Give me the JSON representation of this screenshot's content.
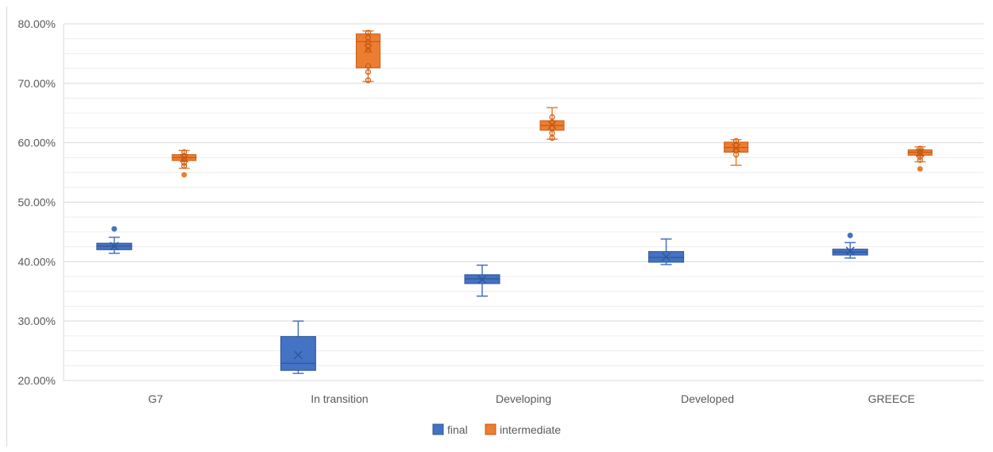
{
  "chart_data": {
    "type": "box",
    "title": "",
    "xlabel": "",
    "ylabel": "",
    "ylim": [
      0.2,
      0.8
    ],
    "y_ticks": [
      "20.00%",
      "30.00%",
      "40.00%",
      "50.00%",
      "60.00%",
      "70.00%",
      "80.00%"
    ],
    "y_tick_values": [
      0.2,
      0.3,
      0.4,
      0.5,
      0.6,
      0.7,
      0.8
    ],
    "categories": [
      "G7",
      "In transition",
      "Developing",
      "Developed",
      "GREECE"
    ],
    "grid": "major and minor horizontal",
    "legend_position": "bottom",
    "series": [
      {
        "name": "final",
        "color": "#4472c4",
        "boxes": [
          {
            "min": 0.414,
            "q1": 0.42,
            "median": 0.426,
            "q3": 0.431,
            "max": 0.441,
            "mean": 0.426,
            "outliers": [
              0.455
            ],
            "points": []
          },
          {
            "min": 0.212,
            "q1": 0.217,
            "median": 0.229,
            "q3": 0.274,
            "max": 0.3,
            "mean": 0.243,
            "outliers": [],
            "points": []
          },
          {
            "min": 0.342,
            "q1": 0.363,
            "median": 0.371,
            "q3": 0.378,
            "max": 0.394,
            "mean": 0.37,
            "outliers": [],
            "points": []
          },
          {
            "min": 0.395,
            "q1": 0.399,
            "median": 0.407,
            "q3": 0.417,
            "max": 0.438,
            "mean": 0.408,
            "outliers": [],
            "points": []
          },
          {
            "min": 0.406,
            "q1": 0.411,
            "median": 0.416,
            "q3": 0.421,
            "max": 0.432,
            "mean": 0.418,
            "outliers": [
              0.444
            ],
            "points": []
          }
        ]
      },
      {
        "name": "intermediate",
        "color": "#ed7d31",
        "boxes": [
          {
            "min": 0.557,
            "q1": 0.57,
            "median": 0.575,
            "q3": 0.58,
            "max": 0.587,
            "mean": 0.574,
            "outliers": [
              0.546
            ],
            "points": [
              0.561,
              0.566,
              0.572,
              0.578,
              0.584
            ]
          },
          {
            "min": 0.703,
            "q1": 0.726,
            "median": 0.77,
            "q3": 0.783,
            "max": 0.788,
            "mean": 0.758,
            "outliers": [],
            "points": [
              0.705,
              0.719,
              0.729,
              0.756,
              0.763,
              0.769,
              0.777,
              0.785
            ]
          },
          {
            "min": 0.606,
            "q1": 0.621,
            "median": 0.629,
            "q3": 0.637,
            "max": 0.659,
            "mean": 0.63,
            "outliers": [],
            "points": [
              0.608,
              0.616,
              0.625,
              0.634,
              0.643
            ]
          },
          {
            "min": 0.562,
            "q1": 0.584,
            "median": 0.592,
            "q3": 0.601,
            "max": 0.605,
            "mean": 0.591,
            "outliers": [],
            "points": [
              0.58,
              0.588,
              0.596,
              0.603
            ]
          },
          {
            "min": 0.568,
            "q1": 0.579,
            "median": 0.584,
            "q3": 0.588,
            "max": 0.593,
            "mean": 0.583,
            "outliers": [
              0.556
            ],
            "points": [
              0.571,
              0.576,
              0.581,
              0.586,
              0.59
            ]
          }
        ]
      }
    ]
  }
}
